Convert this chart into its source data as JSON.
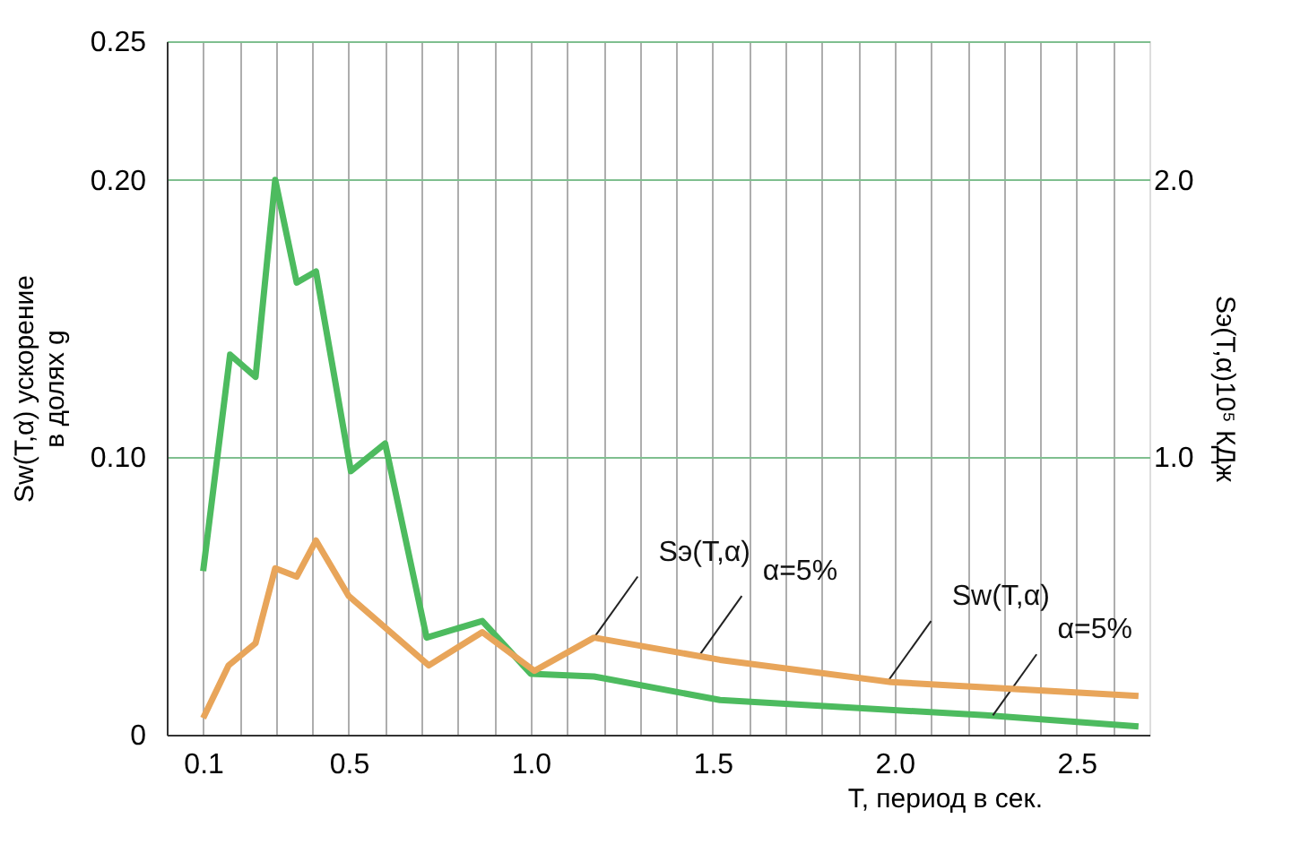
{
  "chart_data": {
    "type": "line",
    "xlabel": "T, период в сек.",
    "ylabel": "Sw(T,α)  ускорение в долях g",
    "y2label": "Sэ(T,α)10⁵ КДж",
    "series": [
      {
        "color": "#4dbb5f",
        "x": [
          0.1,
          0.174,
          0.244,
          0.298,
          0.357,
          0.41,
          0.506,
          0.6,
          0.714,
          0.867,
          1.0,
          1.174,
          1.52,
          2.25,
          2.67
        ],
        "values": [
          0.059,
          0.137,
          0.129,
          0.2,
          0.163,
          0.167,
          0.095,
          0.105,
          0.035,
          0.041,
          0.022,
          0.021,
          0.0125,
          0.007,
          0.003
        ]
      },
      {
        "color": "#e8a55a",
        "axis": "y2",
        "x": [
          0.1,
          0.17,
          0.244,
          0.298,
          0.357,
          0.41,
          0.5,
          0.72,
          0.867,
          1.01,
          1.174,
          1.52,
          1.99,
          2.67
        ],
        "values": [
          0.06,
          0.25,
          0.33,
          0.6,
          0.57,
          0.7,
          0.5,
          0.25,
          0.37,
          0.23,
          0.35,
          0.27,
          0.19,
          0.14
        ]
      }
    ],
    "xlim": [
      0,
      2.7
    ],
    "xticks": [
      {
        "value": 0.1,
        "label": "0.1"
      },
      {
        "value": 0.2,
        "label": null
      },
      {
        "value": 0.3,
        "label": null
      },
      {
        "value": 0.4,
        "label": null
      },
      {
        "value": 0.5,
        "label": "0.5"
      },
      {
        "value": 0.6,
        "label": null
      },
      {
        "value": 0.7,
        "label": null
      },
      {
        "value": 0.8,
        "label": null
      },
      {
        "value": 0.9,
        "label": null
      },
      {
        "value": 1.0,
        "label": "1.0"
      },
      {
        "value": 1.1,
        "label": null
      },
      {
        "value": 1.2,
        "label": null
      },
      {
        "value": 1.3,
        "label": null
      },
      {
        "value": 1.4,
        "label": null
      },
      {
        "value": 1.5,
        "label": "1.5"
      },
      {
        "value": 1.6,
        "label": null
      },
      {
        "value": 1.7,
        "label": null
      },
      {
        "value": 1.8,
        "label": null
      },
      {
        "value": 1.9,
        "label": null
      },
      {
        "value": 2.0,
        "label": "2.0"
      },
      {
        "value": 2.1,
        "label": null
      },
      {
        "value": 2.2,
        "label": null
      },
      {
        "value": 2.3,
        "label": null
      },
      {
        "value": 2.4,
        "label": null
      },
      {
        "value": 2.5,
        "label": "2.5"
      },
      {
        "value": 2.6,
        "label": null
      }
    ],
    "ylim": [
      0,
      0.25
    ],
    "yticks": [
      {
        "value": 0,
        "label": "0"
      },
      {
        "value": 0.1,
        "label": "0.10"
      },
      {
        "value": 0.2,
        "label": "0.20"
      },
      {
        "value": 0.25,
        "label": "0.25"
      }
    ],
    "y2lim": [
      0,
      2.5
    ],
    "y2ticks": [
      {
        "value": 1.0,
        "label": "1.0"
      },
      {
        "value": 2.0,
        "label": "2.0"
      }
    ],
    "grid": true,
    "marker": "none",
    "line_style": "solid",
    "annotations": [
      {
        "text": "Sэ(T,α)",
        "x": 1.174,
        "y": 0.035
      },
      {
        "text": "α=5%",
        "x": 1.46,
        "y": 0.028
      },
      {
        "text": "Sw(T,α)",
        "x": 1.98,
        "y": 0.019
      },
      {
        "text": "α=5%",
        "x": 2.27,
        "y": 0.007
      }
    ]
  }
}
